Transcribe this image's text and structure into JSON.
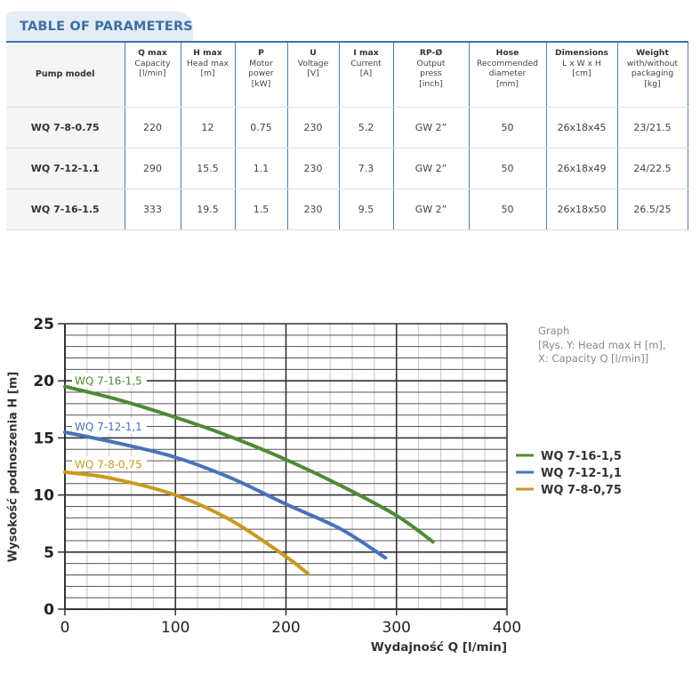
{
  "table": {
    "title": "TABLE OF PARAMETERS",
    "headers": [
      {
        "bold": "Pump model",
        "sub": []
      },
      {
        "bold": "Q max",
        "sub": [
          "Capacity",
          "[l/min]"
        ]
      },
      {
        "bold": "H max",
        "sub": [
          "Head max",
          "[m]"
        ]
      },
      {
        "bold": "P",
        "sub": [
          "Motor",
          "power",
          "[kW]"
        ]
      },
      {
        "bold": "U",
        "sub": [
          "Voltage",
          "[V]"
        ]
      },
      {
        "bold": "I max",
        "sub": [
          "Current",
          "[A]"
        ]
      },
      {
        "bold": "RP-Ø",
        "sub": [
          "Output",
          "press",
          "[inch]"
        ]
      },
      {
        "bold": "Hose",
        "sub": [
          "Recommended",
          "diameter",
          "[mm]"
        ]
      },
      {
        "bold": "Dimensions",
        "sub": [
          "L x W x H",
          "[cm]"
        ]
      },
      {
        "bold": "Weight",
        "sub": [
          "with/without",
          "packaging",
          "[kg]"
        ]
      }
    ],
    "rows": [
      [
        "WQ 7-8-0.75",
        "220",
        "12",
        "0.75",
        "230",
        "5.2",
        "GW 2”",
        "50",
        "26x18x45",
        "23/21.5"
      ],
      [
        "WQ 7-12-1.1",
        "290",
        "15.5",
        "1.1",
        "230",
        "7.3",
        "GW 2”",
        "50",
        "26x18x49",
        "24/22.5"
      ],
      [
        "WQ 7-16-1.5",
        "333",
        "19.5",
        "1.5",
        "230",
        "9.5",
        "GW 2”",
        "50",
        "26x18x50",
        "26.5/25"
      ]
    ]
  },
  "note": {
    "line1": "Graph",
    "line2": "[Rys. Y: Head max H [m],",
    "line3": "X: Capacity Q [l/min]]"
  },
  "chart_data": {
    "type": "line",
    "title": "",
    "xlabel": "Wydajność Q [l/min]",
    "ylabel": "Wysokość podnoszenia H [m]",
    "xlim": [
      0,
      400
    ],
    "ylim": [
      0,
      25
    ],
    "xticks": [
      "0",
      "100",
      "200",
      "300",
      "400"
    ],
    "yticks": [
      "0",
      "5",
      "10",
      "15",
      "20",
      "25"
    ],
    "grid": true,
    "legend_position": "right",
    "series": [
      {
        "name": "WQ 7-16-1,5",
        "color": "#4f8a36",
        "x": [
          0,
          50,
          100,
          150,
          200,
          250,
          300,
          333
        ],
        "y": [
          19.5,
          18.3,
          16.8,
          15.1,
          13.1,
          10.8,
          8.2,
          5.9
        ]
      },
      {
        "name": "WQ 7-12-1,1",
        "color": "#4a72b8",
        "x": [
          0,
          50,
          100,
          150,
          200,
          250,
          290
        ],
        "y": [
          15.5,
          14.5,
          13.3,
          11.5,
          9.2,
          7.0,
          4.5
        ]
      },
      {
        "name": "WQ 7-8-0,75",
        "color": "#c9991f",
        "x": [
          0,
          40,
          100,
          150,
          200,
          220
        ],
        "y": [
          12.0,
          11.5,
          10.0,
          7.8,
          4.6,
          3.1
        ]
      }
    ],
    "inline_labels": [
      {
        "text": "WQ 7-16-1,5",
        "series": 0,
        "at_y": 20
      },
      {
        "text": "WQ 7-12-1,1",
        "series": 1,
        "at_y": 16
      },
      {
        "text": "WQ 7-8-0,75",
        "series": 2,
        "at_y": 12.7
      }
    ]
  }
}
